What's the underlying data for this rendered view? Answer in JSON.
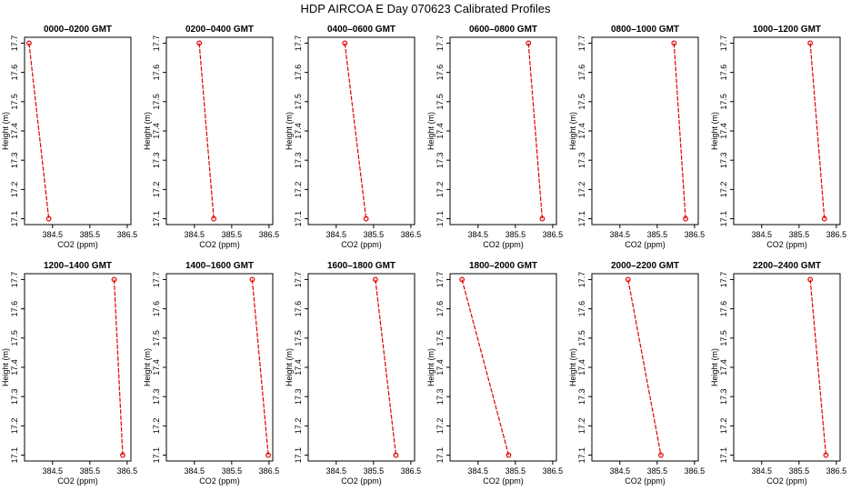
{
  "title": "HDP AIRCOA E  Day 070623  Calibrated Profiles",
  "colors": {
    "line": "#e00000",
    "axis": "#000000",
    "background": "#ffffff"
  },
  "chart_data": [
    {
      "type": "line",
      "title": "0000–0200 GMT",
      "xlabel": "CO2 (ppm)",
      "ylabel": "Height (m)",
      "x_ticks": [
        "384.5",
        "385.5",
        "386.5"
      ],
      "y_ticks": [
        "17.1",
        "17.2",
        "17.3",
        "17.4",
        "17.5",
        "17.6",
        "17.7"
      ],
      "xlim": [
        383.75,
        386.6
      ],
      "ylim": [
        17.08,
        17.72
      ],
      "series": [
        {
          "x": [
            383.87,
            384.4
          ],
          "y": [
            17.7,
            17.1
          ],
          "markers": "open-circle"
        }
      ]
    },
    {
      "type": "line",
      "title": "0200–0400 GMT",
      "xlabel": "CO2 (ppm)",
      "ylabel": "Height (m)",
      "x_ticks": [
        "384.5",
        "385.5",
        "386.5"
      ],
      "y_ticks": [
        "17.1",
        "17.2",
        "17.3",
        "17.4",
        "17.5",
        "17.6",
        "17.7"
      ],
      "xlim": [
        383.75,
        386.6
      ],
      "ylim": [
        17.08,
        17.72
      ],
      "series": [
        {
          "x": [
            384.63,
            385.02
          ],
          "y": [
            17.7,
            17.1
          ],
          "markers": "open-circle"
        }
      ]
    },
    {
      "type": "line",
      "title": "0400–0600 GMT",
      "xlabel": "CO2 (ppm)",
      "ylabel": "Height (m)",
      "x_ticks": [
        "384.5",
        "385.5",
        "386.5"
      ],
      "y_ticks": [
        "17.1",
        "17.2",
        "17.3",
        "17.4",
        "17.5",
        "17.6",
        "17.7"
      ],
      "xlim": [
        383.75,
        386.6
      ],
      "ylim": [
        17.08,
        17.72
      ],
      "series": [
        {
          "x": [
            384.73,
            385.3
          ],
          "y": [
            17.7,
            17.1
          ],
          "markers": "open-circle"
        }
      ]
    },
    {
      "type": "line",
      "title": "0600–0800 GMT",
      "xlabel": "CO2 (ppm)",
      "ylabel": "Height (m)",
      "x_ticks": [
        "384.5",
        "385.5",
        "386.5"
      ],
      "y_ticks": [
        "17.1",
        "17.2",
        "17.3",
        "17.4",
        "17.5",
        "17.6",
        "17.7"
      ],
      "xlim": [
        383.75,
        386.6
      ],
      "ylim": [
        17.08,
        17.72
      ],
      "series": [
        {
          "x": [
            385.85,
            386.22
          ],
          "y": [
            17.7,
            17.1
          ],
          "markers": "open-circle"
        }
      ]
    },
    {
      "type": "line",
      "title": "0800–1000 GMT",
      "xlabel": "CO2 (ppm)",
      "ylabel": "Height (m)",
      "x_ticks": [
        "384.5",
        "385.5",
        "386.5"
      ],
      "y_ticks": [
        "17.1",
        "17.2",
        "17.3",
        "17.4",
        "17.5",
        "17.6",
        "17.7"
      ],
      "xlim": [
        383.75,
        386.6
      ],
      "ylim": [
        17.08,
        17.72
      ],
      "series": [
        {
          "x": [
            385.95,
            386.26
          ],
          "y": [
            17.7,
            17.1
          ],
          "markers": "open-circle"
        }
      ]
    },
    {
      "type": "line",
      "title": "1000–1200 GMT",
      "xlabel": "CO2 (ppm)",
      "ylabel": "Height (m)",
      "x_ticks": [
        "384.5",
        "385.5",
        "386.5"
      ],
      "y_ticks": [
        "17.1",
        "17.2",
        "17.3",
        "17.4",
        "17.5",
        "17.6",
        "17.7"
      ],
      "xlim": [
        383.75,
        386.6
      ],
      "ylim": [
        17.08,
        17.72
      ],
      "series": [
        {
          "x": [
            385.8,
            386.18
          ],
          "y": [
            17.7,
            17.1
          ],
          "markers": "open-circle"
        }
      ]
    },
    {
      "type": "line",
      "title": "1200–1400 GMT",
      "xlabel": "CO2 (ppm)",
      "ylabel": "Height (m)",
      "x_ticks": [
        "384.5",
        "385.5",
        "386.5"
      ],
      "y_ticks": [
        "17.1",
        "17.2",
        "17.3",
        "17.4",
        "17.5",
        "17.6",
        "17.7"
      ],
      "xlim": [
        383.75,
        386.6
      ],
      "ylim": [
        17.08,
        17.72
      ],
      "series": [
        {
          "x": [
            386.15,
            386.38
          ],
          "y": [
            17.7,
            17.1
          ],
          "markers": "open-circle"
        }
      ]
    },
    {
      "type": "line",
      "title": "1400–1600 GMT",
      "xlabel": "CO2 (ppm)",
      "ylabel": "Height (m)",
      "x_ticks": [
        "384.5",
        "385.5",
        "386.5"
      ],
      "y_ticks": [
        "17.1",
        "17.2",
        "17.3",
        "17.4",
        "17.5",
        "17.6",
        "17.7"
      ],
      "xlim": [
        383.75,
        386.6
      ],
      "ylim": [
        17.08,
        17.72
      ],
      "series": [
        {
          "x": [
            386.05,
            386.48
          ],
          "y": [
            17.7,
            17.1
          ],
          "markers": "open-circle"
        }
      ]
    },
    {
      "type": "line",
      "title": "1600–1800 GMT",
      "xlabel": "CO2 (ppm)",
      "ylabel": "Height (m)",
      "x_ticks": [
        "384.5",
        "385.5",
        "386.5"
      ],
      "y_ticks": [
        "17.1",
        "17.2",
        "17.3",
        "17.4",
        "17.5",
        "17.6",
        "17.7"
      ],
      "xlim": [
        383.75,
        386.6
      ],
      "ylim": [
        17.08,
        17.72
      ],
      "series": [
        {
          "x": [
            385.55,
            386.1
          ],
          "y": [
            17.7,
            17.1
          ],
          "markers": "open-circle"
        }
      ]
    },
    {
      "type": "line",
      "title": "1800–2000 GMT",
      "xlabel": "CO2 (ppm)",
      "ylabel": "Height (m)",
      "x_ticks": [
        "384.5",
        "385.5",
        "386.5"
      ],
      "y_ticks": [
        "17.1",
        "17.2",
        "17.3",
        "17.4",
        "17.5",
        "17.6",
        "17.7"
      ],
      "xlim": [
        383.75,
        386.6
      ],
      "ylim": [
        17.08,
        17.72
      ],
      "series": [
        {
          "x": [
            384.07,
            385.32
          ],
          "y": [
            17.7,
            17.1
          ],
          "markers": "open-circle"
        }
      ]
    },
    {
      "type": "line",
      "title": "2000–2200 GMT",
      "xlabel": "CO2 (ppm)",
      "ylabel": "Height (m)",
      "x_ticks": [
        "384.5",
        "385.5",
        "386.5"
      ],
      "y_ticks": [
        "17.1",
        "17.2",
        "17.3",
        "17.4",
        "17.5",
        "17.6",
        "17.7"
      ],
      "xlim": [
        383.75,
        386.6
      ],
      "ylim": [
        17.08,
        17.72
      ],
      "series": [
        {
          "x": [
            384.72,
            385.6
          ],
          "y": [
            17.7,
            17.1
          ],
          "markers": "open-circle"
        }
      ]
    },
    {
      "type": "line",
      "title": "2200–2400 GMT",
      "xlabel": "CO2 (ppm)",
      "ylabel": "Height (m)",
      "x_ticks": [
        "384.5",
        "385.5",
        "386.5"
      ],
      "y_ticks": [
        "17.1",
        "17.2",
        "17.3",
        "17.4",
        "17.5",
        "17.6",
        "17.7"
      ],
      "xlim": [
        383.75,
        386.6
      ],
      "ylim": [
        17.08,
        17.72
      ],
      "series": [
        {
          "x": [
            385.8,
            386.22
          ],
          "y": [
            17.7,
            17.1
          ],
          "markers": "open-circle"
        }
      ]
    }
  ]
}
